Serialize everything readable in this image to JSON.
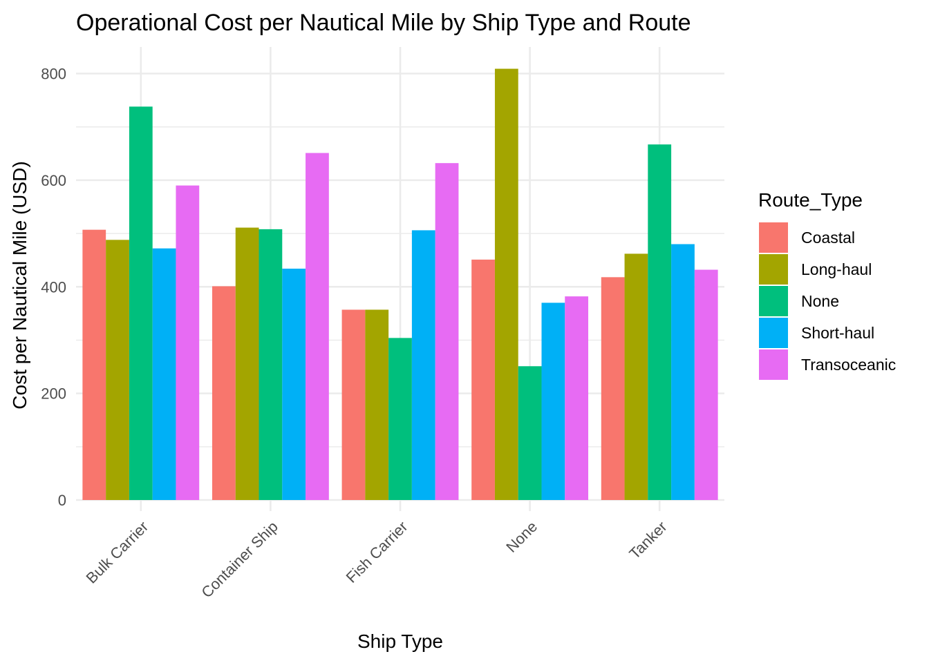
{
  "chart_data": {
    "type": "bar",
    "title": "Operational Cost per Nautical Mile by Ship Type and Route",
    "xlabel": "Ship Type",
    "ylabel": "Cost per Nautical Mile (USD)",
    "legend_title": "Route_Type",
    "legend_position": "right",
    "grid": true,
    "ylim": [
      -20,
      850
    ],
    "yticks": [
      0,
      200,
      400,
      600,
      800
    ],
    "categories": [
      "Bulk Carrier",
      "Container Ship",
      "Fish Carrier",
      "None",
      "Tanker"
    ],
    "series": [
      {
        "name": "Coastal",
        "color": "#F8766D",
        "values": [
          507,
          401,
          357,
          451,
          418
        ]
      },
      {
        "name": "Long-haul",
        "color": "#A3A500",
        "values": [
          488,
          511,
          357,
          809,
          462
        ]
      },
      {
        "name": "None",
        "color": "#00BF7D",
        "values": [
          738,
          508,
          304,
          251,
          667
        ]
      },
      {
        "name": "Short-haul",
        "color": "#00B0F6",
        "values": [
          472,
          434,
          506,
          370,
          480
        ]
      },
      {
        "name": "Transoceanic",
        "color": "#E76BF3",
        "values": [
          590,
          651,
          632,
          382,
          432
        ]
      }
    ]
  }
}
